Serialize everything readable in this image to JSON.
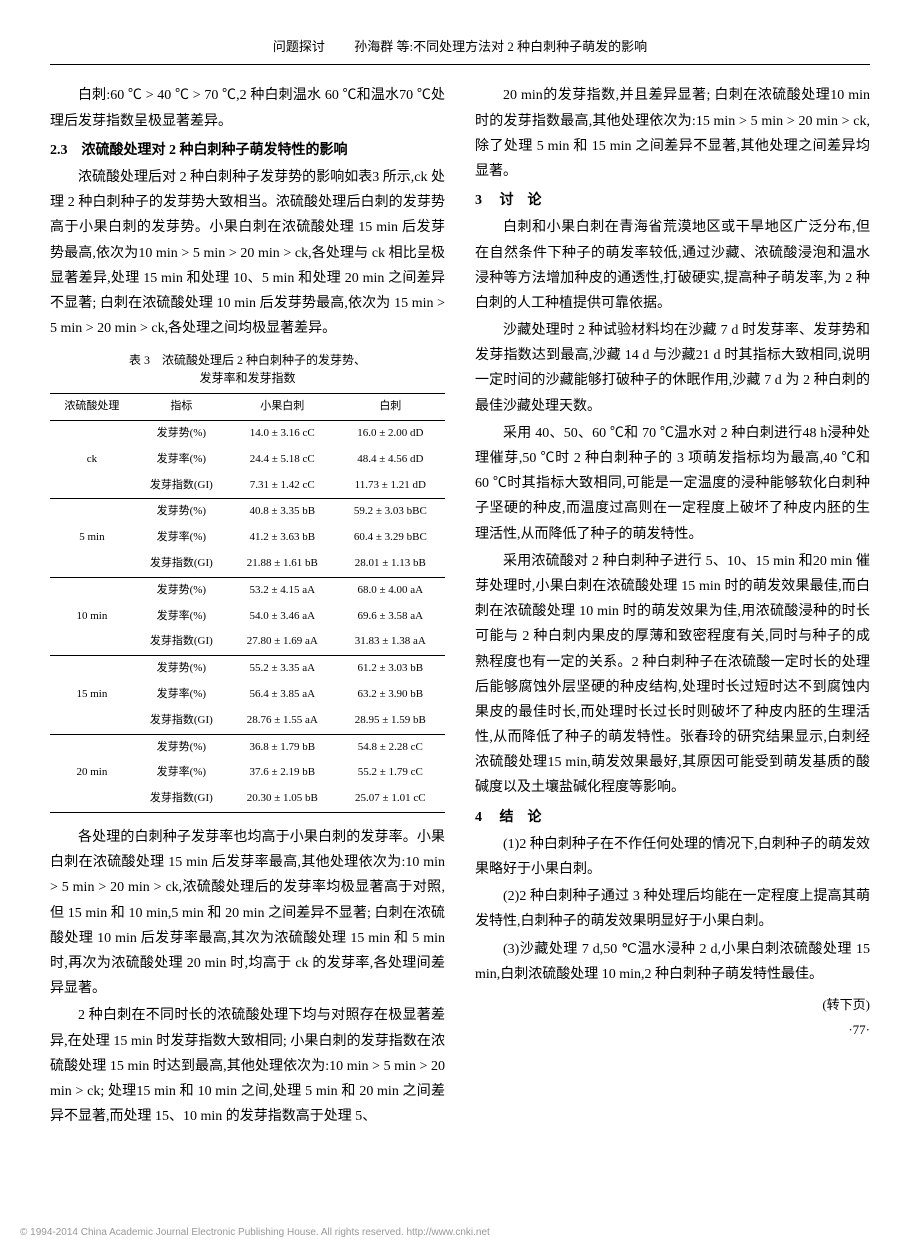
{
  "header": {
    "category": "问题探讨",
    "authors": "孙海群 等:不同处理方法对 2 种白刺种子萌发的影响"
  },
  "col1": {
    "p1": "白刺:60 ℃ > 40 ℃ > 70 ℃,2 种白刺温水 60 ℃和温水70 ℃处理后发芽指数呈极显著差异。",
    "s23_heading": "2.3　浓硫酸处理对 2 种白刺种子萌发特性的影响",
    "p2": "浓硫酸处理后对 2 种白刺种子发芽势的影响如表3 所示,ck 处理 2 种白刺种子的发芽势大致相当。浓硫酸处理后白刺的发芽势高于小果白刺的发芽势。小果白刺在浓硫酸处理 15 min 后发芽势最高,依次为10 min > 5 min > 20 min > ck,各处理与 ck 相比呈极显著差异,处理 15 min 和处理 10、5 min 和处理 20 min 之间差异不显著; 白刺在浓硫酸处理 10 min 后发芽势最高,依次为 15 min > 5 min > 20 min > ck,各处理之间均极显著差异。",
    "table3": {
      "caption_l1": "表 3　浓硫酸处理后 2 种白刺种子的发芽势、",
      "caption_l2": "发芽率和发芽指数",
      "headers": [
        "浓硫酸处理",
        "指标",
        "小果白刺",
        "白刺"
      ],
      "groups": [
        {
          "label": "ck",
          "rows": [
            [
              "发芽势(%)",
              "14.0 ± 3.16 cC",
              "16.0 ± 2.00 dD"
            ],
            [
              "发芽率(%)",
              "24.4 ± 5.18 cC",
              "48.4 ± 4.56 dD"
            ],
            [
              "发芽指数(GI)",
              "7.31 ± 1.42 cC",
              "11.73 ± 1.21 dD"
            ]
          ]
        },
        {
          "label": "5 min",
          "rows": [
            [
              "发芽势(%)",
              "40.8 ± 3.35 bB",
              "59.2 ± 3.03 bBC"
            ],
            [
              "发芽率(%)",
              "41.2 ± 3.63 bB",
              "60.4 ± 3.29 bBC"
            ],
            [
              "发芽指数(GI)",
              "21.88 ± 1.61 bB",
              "28.01 ± 1.13 bB"
            ]
          ]
        },
        {
          "label": "10 min",
          "rows": [
            [
              "发芽势(%)",
              "53.2 ± 4.15 aA",
              "68.0 ± 4.00 aA"
            ],
            [
              "发芽率(%)",
              "54.0 ± 3.46 aA",
              "69.6 ± 3.58 aA"
            ],
            [
              "发芽指数(GI)",
              "27.80 ± 1.69 aA",
              "31.83 ± 1.38 aA"
            ]
          ]
        },
        {
          "label": "15 min",
          "rows": [
            [
              "发芽势(%)",
              "55.2 ± 3.35 aA",
              "61.2 ± 3.03 bB"
            ],
            [
              "发芽率(%)",
              "56.4 ± 3.85 aA",
              "63.2 ± 3.90 bB"
            ],
            [
              "发芽指数(GI)",
              "28.76 ± 1.55 aA",
              "28.95 ± 1.59 bB"
            ]
          ]
        },
        {
          "label": "20 min",
          "rows": [
            [
              "发芽势(%)",
              "36.8 ± 1.79 bB",
              "54.8 ± 2.28 cC"
            ],
            [
              "发芽率(%)",
              "37.6 ± 2.19 bB",
              "55.2 ± 1.79 cC"
            ],
            [
              "发芽指数(GI)",
              "20.30 ± 1.05 bB",
              "25.07 ± 1.01 cC"
            ]
          ]
        }
      ]
    },
    "p3": "各处理的白刺种子发芽率也均高于小果白刺的发芽率。小果白刺在浓硫酸处理 15 min 后发芽率最高,其他处理依次为:10 min > 5 min > 20 min > ck,浓硫酸处理后的发芽率均极显著高于对照,但 15 min 和 10 min,5 min 和 20 min 之间差异不显著; 白刺在浓硫酸处理 10 min 后发芽率最高,其次为浓硫酸处理 15 min 和 5 min 时,再次为浓硫酸处理 20 min 时,均高于 ck 的发芽率,各处理间差异显著。",
    "p4": "2 种白刺在不同时长的浓硫酸处理下均与对照存在极显著差异,在处理 15 min 时发芽指数大致相同; 小果白刺的发芽指数在浓硫酸处理 15 min 时达到最高,其他处理依次为:10 min > 5 min > 20 min > ck; 处理15 min 和 10 min 之间,处理 5 min 和 20 min 之间差异不显著,而处理 15、10 min 的发芽指数高于处理 5、"
  },
  "col2": {
    "p1": "20 min的发芽指数,并且差异显著; 白刺在浓硫酸处理10 min 时的发芽指数最高,其他处理依次为:15 min > 5 min > 20 min > ck,除了处理 5 min 和 15 min 之间差异不显著,其他处理之间差异均显著。",
    "s3_heading_num": "3",
    "s3_heading_text": "讨　论",
    "p2": "白刺和小果白刺在青海省荒漠地区或干旱地区广泛分布,但在自然条件下种子的萌发率较低,通过沙藏、浓硫酸浸泡和温水浸种等方法增加种皮的通透性,打破硬实,提高种子萌发率,为 2 种白刺的人工种植提供可靠依据。",
    "p3": "沙藏处理时 2 种试验材料均在沙藏 7 d 时发芽率、发芽势和发芽指数达到最高,沙藏 14 d 与沙藏21 d 时其指标大致相同,说明一定时间的沙藏能够打破种子的休眠作用,沙藏 7 d 为 2 种白刺的最佳沙藏处理天数。",
    "p4": "采用 40、50、60 ℃和 70 ℃温水对 2 种白刺进行48 h浸种处理催芽,50 ℃时 2 种白刺种子的 3 项萌发指标均为最高,40 ℃和 60 ℃时其指标大致相同,可能是一定温度的浸种能够软化白刺种子坚硬的种皮,而温度过高则在一定程度上破坏了种皮内胚的生理活性,从而降低了种子的萌发特性。",
    "p5": "采用浓硫酸对 2 种白刺种子进行 5、10、15 min 和20 min 催芽处理时,小果白刺在浓硫酸处理 15 min 时的萌发效果最佳,而白刺在浓硫酸处理 10 min 时的萌发效果为佳,用浓硫酸浸种的时长可能与 2 种白刺内果皮的厚薄和致密程度有关,同时与种子的成熟程度也有一定的关系。2 种白刺种子在浓硫酸一定时长的处理后能够腐蚀外层坚硬的种皮结构,处理时长过短时达不到腐蚀内果皮的最佳时长,而处理时长过长时则破坏了种皮内胚的生理活性,从而降低了种子的萌发特性。张春玲的研究结果显示,白刺经浓硫酸处理15 min,萌发效果最好,其原因可能受到萌发基质的酸碱度以及土壤盐碱化程度等影响。",
    "s4_heading_num": "4",
    "s4_heading_text": "结　论",
    "p6": "(1)2 种白刺种子在不作任何处理的情况下,白刺种子的萌发效果略好于小果白刺。",
    "p7": "(2)2 种白刺种子通过 3 种处理后均能在一定程度上提高其萌发特性,白刺种子的萌发效果明显好于小果白刺。",
    "p8": "(3)沙藏处理 7 d,50 ℃温水浸种 2 d,小果白刺浓硫酸处理 15 min,白刺浓硫酸处理 10 min,2 种白刺种子萌发特性最佳。",
    "continue_note": "(转下页)",
    "page_num": "·77·"
  },
  "watermark": "© 1994-2014 China Academic Journal Electronic Publishing House. All rights reserved.    http://www.cnki.net"
}
